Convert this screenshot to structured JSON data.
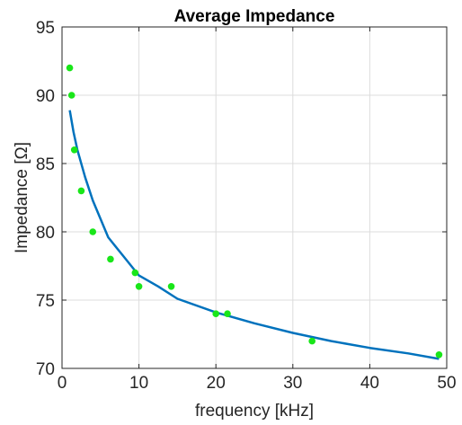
{
  "chart_data": {
    "type": "scatter",
    "title": "Average Impedance",
    "xlabel": "frequency [kHz]",
    "ylabel": "Impedance [Ω]",
    "xlim": [
      0,
      50
    ],
    "ylim": [
      70,
      95
    ],
    "xticks": [
      0,
      10,
      20,
      30,
      40,
      50
    ],
    "yticks": [
      70,
      75,
      80,
      85,
      90,
      95
    ],
    "grid": true,
    "series": [
      {
        "kind": "scatter",
        "color": "#19e619",
        "x": [
          1.0,
          1.25,
          1.6,
          2.5,
          4.0,
          6.3,
          9.5,
          10.0,
          14.2,
          20.0,
          21.5,
          32.5,
          49.0
        ],
        "y": [
          92,
          90,
          86,
          83,
          80,
          78,
          77,
          76,
          76,
          74,
          74,
          72,
          71
        ]
      },
      {
        "kind": "line",
        "color": "#0072bd",
        "x": [
          1.0,
          1.5,
          2.0,
          3.0,
          4.0,
          6.0,
          8.0,
          10.0,
          12.5,
          15.0,
          20.0,
          25.0,
          30.0,
          35.0,
          40.0,
          45.0,
          49.0
        ],
        "y": [
          88.9,
          87.3,
          86.0,
          84.0,
          82.3,
          79.6,
          78.2,
          76.8,
          76.0,
          75.1,
          74.1,
          73.3,
          72.6,
          72.0,
          71.5,
          71.1,
          70.7
        ]
      }
    ]
  }
}
